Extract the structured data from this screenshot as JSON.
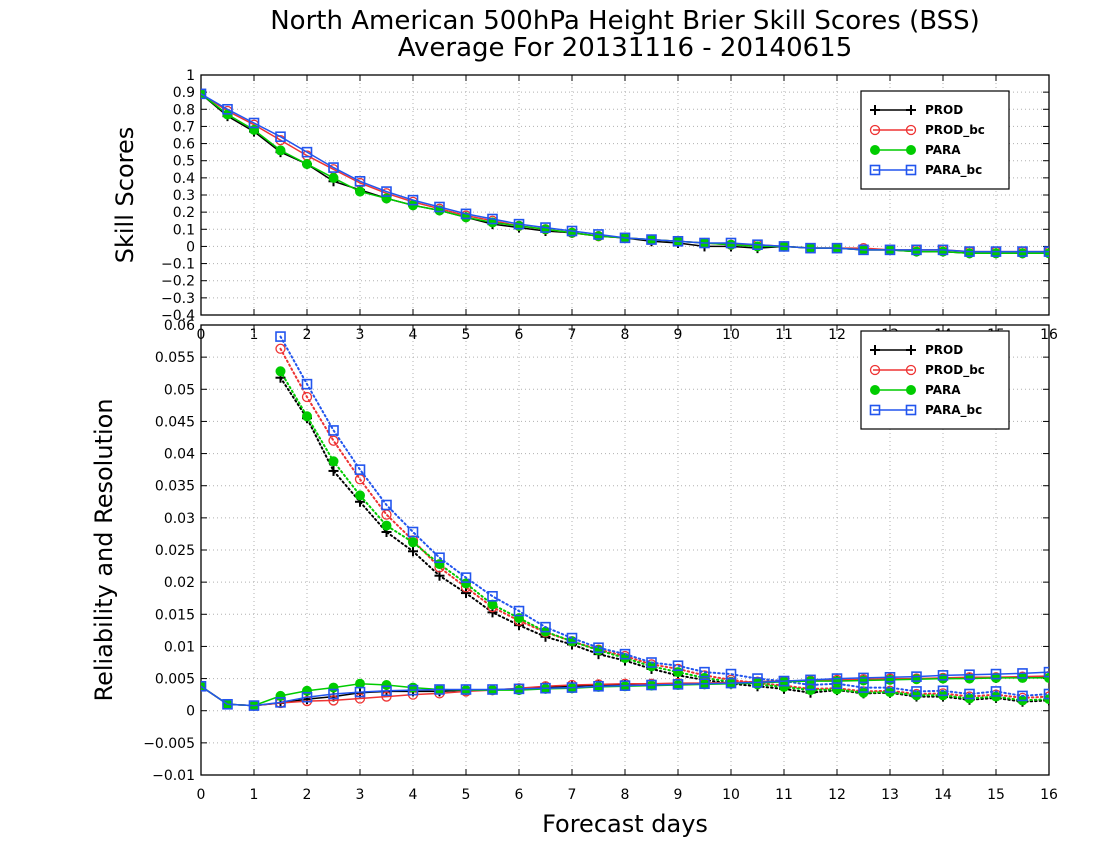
{
  "chart_data": [
    {
      "panel": "top",
      "type": "line",
      "title": "North American 500hPa Height Brier Skill Scores (BSS)",
      "subtitle": "Average For 20131116 - 20140615",
      "ylabel": "Skill Scores",
      "xlabel": "",
      "xlim": [
        0,
        16
      ],
      "ylim": [
        -0.4,
        1
      ],
      "xticks": [
        0,
        1,
        2,
        3,
        4,
        5,
        6,
        7,
        8,
        9,
        10,
        11,
        12,
        13,
        14,
        15,
        16
      ],
      "yticks": [
        "-0.4",
        "-0.3",
        "-0.2",
        "-0.1",
        "0",
        "0.1",
        "0.2",
        "0.3",
        "0.4",
        "0.5",
        "0.6",
        "0.7",
        "0.8",
        "0.9",
        "1"
      ],
      "grid": true,
      "legend_placement": "top-right",
      "x": [
        0,
        0.5,
        1,
        1.5,
        2,
        2.5,
        3,
        3.5,
        4,
        4.5,
        5,
        5.5,
        6,
        6.5,
        7,
        7.5,
        8,
        8.5,
        9,
        9.5,
        10,
        10.5,
        11,
        11.5,
        12,
        12.5,
        13,
        13.5,
        14,
        14.5,
        15,
        15.5,
        16
      ],
      "series": [
        {
          "name": "PROD",
          "color": "#000000",
          "marker": "plus",
          "values": [
            0.89,
            0.76,
            0.67,
            0.55,
            0.48,
            0.38,
            0.33,
            0.28,
            0.24,
            0.21,
            0.17,
            0.13,
            0.11,
            0.09,
            0.08,
            0.06,
            0.05,
            0.03,
            0.02,
            0.0,
            0.0,
            -0.01,
            0.0,
            -0.01,
            -0.01,
            -0.02,
            -0.02,
            -0.03,
            -0.03,
            -0.04,
            -0.04,
            -0.04,
            -0.04
          ]
        },
        {
          "name": "PROD_bc",
          "color": "#ee3333",
          "marker": "circle-open",
          "values": [
            0.89,
            0.79,
            0.71,
            0.62,
            0.53,
            0.45,
            0.37,
            0.31,
            0.26,
            0.22,
            0.18,
            0.15,
            0.12,
            0.1,
            0.08,
            0.06,
            0.05,
            0.04,
            0.03,
            0.02,
            0.01,
            0.01,
            0.0,
            -0.01,
            -0.01,
            -0.01,
            -0.02,
            -0.02,
            -0.02,
            -0.03,
            -0.03,
            -0.03,
            -0.03
          ]
        },
        {
          "name": "PARA",
          "color": "#00cc00",
          "marker": "circle-filled",
          "values": [
            0.89,
            0.77,
            0.68,
            0.56,
            0.48,
            0.4,
            0.32,
            0.28,
            0.24,
            0.21,
            0.17,
            0.14,
            0.12,
            0.1,
            0.08,
            0.06,
            0.05,
            0.04,
            0.03,
            0.02,
            0.01,
            0.0,
            0.0,
            -0.01,
            -0.01,
            -0.02,
            -0.02,
            -0.03,
            -0.03,
            -0.04,
            -0.04,
            -0.04,
            -0.04
          ]
        },
        {
          "name": "PARA_bc",
          "color": "#2255ee",
          "marker": "square-open",
          "values": [
            0.89,
            0.8,
            0.72,
            0.64,
            0.55,
            0.46,
            0.38,
            0.32,
            0.27,
            0.23,
            0.19,
            0.16,
            0.13,
            0.11,
            0.09,
            0.07,
            0.05,
            0.04,
            0.03,
            0.02,
            0.02,
            0.01,
            0.0,
            -0.01,
            -0.01,
            -0.02,
            -0.02,
            -0.02,
            -0.02,
            -0.03,
            -0.03,
            -0.03,
            -0.03
          ]
        }
      ]
    },
    {
      "panel": "bottom",
      "type": "line",
      "title": "",
      "ylabel": "Reliability and Resolution",
      "xlabel": "Forecast days",
      "xlim": [
        0,
        16
      ],
      "ylim": [
        -0.01,
        0.06
      ],
      "xticks": [
        0,
        1,
        2,
        3,
        4,
        5,
        6,
        7,
        8,
        9,
        10,
        11,
        12,
        13,
        14,
        15,
        16
      ],
      "yticks": [
        "-0.01",
        "-0.005",
        "0",
        "0.005",
        "0.01",
        "0.015",
        "0.02",
        "0.025",
        "0.03",
        "0.035",
        "0.04",
        "0.045",
        "0.05",
        "0.055",
        "0.06"
      ],
      "grid": true,
      "legend_placement": "top-right",
      "x": [
        0,
        0.5,
        1,
        1.5,
        2,
        2.5,
        3,
        3.5,
        4,
        4.5,
        5,
        5.5,
        6,
        6.5,
        7,
        7.5,
        8,
        8.5,
        9,
        9.5,
        10,
        10.5,
        11,
        11.5,
        12,
        12.5,
        13,
        13.5,
        14,
        14.5,
        15,
        15.5,
        16
      ],
      "note_style": "solid lines = reliability, dotted lines = resolution",
      "reliability": [
        {
          "name": "PROD",
          "color": "#000000",
          "marker": "plus",
          "values": [
            0.0038,
            0.001,
            0.0008,
            0.0012,
            0.0018,
            0.0022,
            0.0028,
            0.003,
            0.003,
            0.003,
            0.0032,
            0.0032,
            0.0034,
            0.0036,
            0.0038,
            0.004,
            0.004,
            0.004,
            0.0042,
            0.0043,
            0.0043,
            0.0045,
            0.0046,
            0.0047,
            0.0048,
            0.0048,
            0.0049,
            0.005,
            0.005,
            0.0051,
            0.0051,
            0.0052,
            0.0052
          ]
        },
        {
          "name": "PROD_bc",
          "color": "#ee3333",
          "marker": "circle-open",
          "values": [
            0.0038,
            0.001,
            0.0008,
            0.0012,
            0.0015,
            0.0016,
            0.0019,
            0.0022,
            0.0025,
            0.0027,
            0.003,
            0.0032,
            0.0035,
            0.0038,
            0.004,
            0.0041,
            0.0042,
            0.0042,
            0.0043,
            0.0043,
            0.0044,
            0.0045,
            0.0046,
            0.0047,
            0.0048,
            0.0049,
            0.005,
            0.005,
            0.0051,
            0.0052,
            0.0052,
            0.0053,
            0.0054
          ]
        },
        {
          "name": "PARA",
          "color": "#00cc00",
          "marker": "circle-filled",
          "values": [
            0.0038,
            0.001,
            0.0008,
            0.0023,
            0.0031,
            0.0036,
            0.0042,
            0.004,
            0.0036,
            0.0033,
            0.0032,
            0.0032,
            0.0032,
            0.0034,
            0.0035,
            0.0037,
            0.0038,
            0.0039,
            0.004,
            0.0041,
            0.0042,
            0.0043,
            0.0045,
            0.0046,
            0.0046,
            0.0047,
            0.0048,
            0.0049,
            0.005,
            0.005,
            0.0051,
            0.0051,
            0.0051
          ]
        },
        {
          "name": "PARA_bc",
          "color": "#2255ee",
          "marker": "square-open",
          "values": [
            0.0038,
            0.001,
            0.0008,
            0.0013,
            0.0021,
            0.0026,
            0.0029,
            0.0031,
            0.0032,
            0.0033,
            0.0033,
            0.0033,
            0.0034,
            0.0035,
            0.0036,
            0.0038,
            0.0039,
            0.004,
            0.0041,
            0.0042,
            0.0043,
            0.0044,
            0.0046,
            0.0048,
            0.005,
            0.0051,
            0.0052,
            0.0053,
            0.0055,
            0.0056,
            0.0057,
            0.0058,
            0.006
          ]
        }
      ],
      "resolution": [
        {
          "name": "PROD",
          "color": "#000000",
          "marker": "plus",
          "values": [
            null,
            null,
            null,
            0.0518,
            0.0455,
            0.0373,
            0.0325,
            0.0278,
            0.0248,
            0.021,
            0.0183,
            0.0153,
            0.0133,
            0.0115,
            0.0103,
            0.0088,
            0.0078,
            0.0065,
            0.0055,
            0.0048,
            0.0042,
            0.0038,
            0.0034,
            0.0028,
            0.0032,
            0.0027,
            0.0028,
            0.0022,
            0.0022,
            0.0017,
            0.002,
            0.0014,
            0.0016
          ]
        },
        {
          "name": "PROD_bc",
          "color": "#ee3333",
          "marker": "circle-open",
          "values": [
            null,
            null,
            null,
            0.0563,
            0.0488,
            0.042,
            0.036,
            0.0305,
            0.0265,
            0.0223,
            0.0192,
            0.0161,
            0.014,
            0.0122,
            0.0108,
            0.0095,
            0.0085,
            0.0072,
            0.0065,
            0.0055,
            0.0048,
            0.0043,
            0.0039,
            0.0034,
            0.0035,
            0.003,
            0.0031,
            0.0026,
            0.0027,
            0.0022,
            0.0025,
            0.002,
            0.0022
          ]
        },
        {
          "name": "PARA",
          "color": "#00cc00",
          "marker": "circle-filled",
          "values": [
            null,
            null,
            null,
            0.0528,
            0.0458,
            0.0388,
            0.0335,
            0.0288,
            0.0262,
            0.0228,
            0.0198,
            0.0165,
            0.0144,
            0.0123,
            0.0108,
            0.0094,
            0.0082,
            0.0069,
            0.006,
            0.0051,
            0.0045,
            0.0041,
            0.0037,
            0.0032,
            0.0033,
            0.0028,
            0.0029,
            0.0024,
            0.0024,
            0.0019,
            0.0022,
            0.0016,
            0.0018
          ]
        },
        {
          "name": "PARA_bc",
          "color": "#2255ee",
          "marker": "square-open",
          "values": [
            null,
            null,
            null,
            0.0582,
            0.0508,
            0.0436,
            0.0375,
            0.032,
            0.0278,
            0.0238,
            0.0207,
            0.0178,
            0.0155,
            0.013,
            0.0113,
            0.0098,
            0.0088,
            0.0075,
            0.007,
            0.006,
            0.0057,
            0.005,
            0.0046,
            0.004,
            0.0042,
            0.0036,
            0.0036,
            0.003,
            0.0031,
            0.0026,
            0.003,
            0.0023,
            0.0026
          ]
        }
      ]
    }
  ]
}
